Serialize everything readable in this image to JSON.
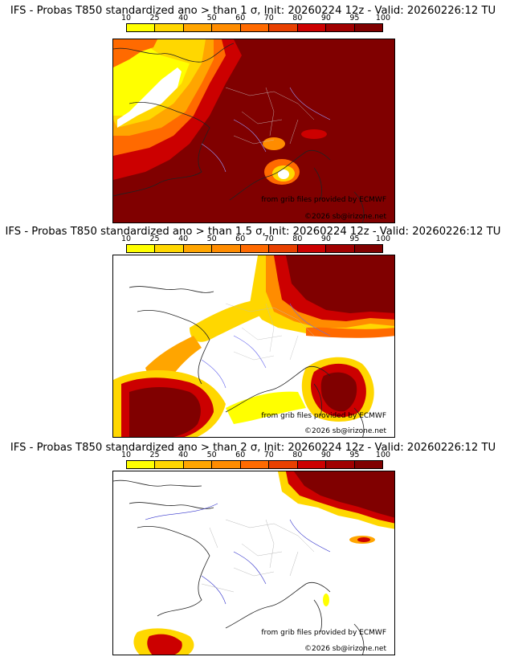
{
  "legend": {
    "ticks": [
      "10",
      "25",
      "40",
      "50",
      "60",
      "70",
      "80",
      "90",
      "95",
      "100"
    ],
    "colors": [
      "#ffff00",
      "#ffd700",
      "#ffa500",
      "#ff8c00",
      "#ff6a00",
      "#e84000",
      "#cc0000",
      "#a00000",
      "#800000"
    ]
  },
  "credits": {
    "source": "from grib files provided by ECMWF",
    "copyright": "©2026 sb@irizone.net"
  },
  "panels": [
    {
      "title": "IFS - Probas T850  standardized ano > than 1 σ, Init: 20260224 12z - Valid: 20260226:12 TU",
      "threshold": "1 σ"
    },
    {
      "title": "IFS - Probas T850  standardized ano > than 1.5 σ, Init: 20260224 12z - Valid: 20260226:12 TU",
      "threshold": "1.5 σ"
    },
    {
      "title": "IFS - Probas T850  standardized ano > than 2 σ, Init: 20260224 12z - Valid: 20260226:12 TU",
      "threshold": "2 σ"
    }
  ]
}
